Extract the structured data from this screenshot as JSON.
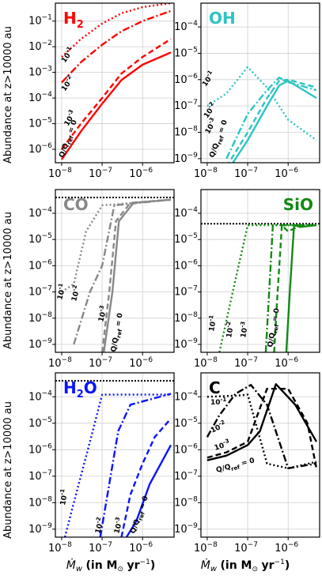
{
  "ylabel_top": "Abundance at",
  "ylabel_bottom": "z>10000 au",
  "ylabel_bottom_2": "z>10000 au",
  "ylabel_mid": "Abundance at  z>10000 au",
  "xlabel_left": "Ṁ",
  "xlabel_text": "(in M",
  "xlabel_unit": "yr",
  "ann_labels": {
    "l1": "10",
    "e1": "-1",
    "l2": "10",
    "e2": "-2",
    "l3": "10",
    "e3": "-3",
    "ref": "Q/Q",
    "refsub": "ref",
    "refval": " = 0"
  },
  "ticks": {
    "xbase": "10",
    "xexps": [
      "-8",
      "-7",
      "-6"
    ],
    "ybase": "10"
  },
  "colors": {
    "H2": "#ff0000",
    "OH": "#2ec4c4",
    "CO": "#888888",
    "SiO": "#138a13",
    "H2O": "#0a14ff",
    "C": "#000000"
  },
  "chart_data": [
    {
      "type": "line",
      "molecule": "H",
      "molecule_sub": "2",
      "color": "#ff0000",
      "xscale": "log",
      "yscale": "log",
      "xlim": [
        7e-09,
        6e-06
      ],
      "ylim": [
        3e-07,
        0.5
      ],
      "yticks": [
        -6,
        -5,
        -4,
        -3,
        -2,
        -1
      ],
      "title_pos": "top-left",
      "series": [
        {
          "name": "10^-1",
          "style": "dotted",
          "x": [
            1e-08,
            3e-08,
            1e-07,
            3e-07,
            1e-06,
            5e-06
          ],
          "y": [
            0.004,
            0.02,
            0.08,
            0.2,
            0.35,
            0.5
          ]
        },
        {
          "name": "10^-2",
          "style": "dashdot",
          "x": [
            1e-08,
            3e-08,
            1e-07,
            3e-07,
            1e-06,
            5e-06
          ],
          "y": [
            0.0004,
            0.0025,
            0.012,
            0.04,
            0.1,
            0.25
          ]
        },
        {
          "name": "10^-3",
          "style": "dashed",
          "x": [
            1e-08,
            3e-08,
            1e-07,
            3e-07,
            1e-06,
            5e-06
          ],
          "y": [
            1e-06,
            1e-05,
            0.0001,
            0.0009,
            0.004,
            0.02
          ]
        },
        {
          "name": "Q/Qref=0",
          "style": "solid",
          "x": [
            1e-08,
            3e-08,
            1e-07,
            3e-07,
            1e-06,
            5e-06
          ],
          "y": [
            4e-07,
            5e-06,
            6e-05,
            0.0005,
            0.002,
            0.006
          ]
        }
      ]
    },
    {
      "type": "line",
      "molecule": "OH",
      "molecule_sub": "",
      "color": "#2ec4c4",
      "xscale": "log",
      "yscale": "log",
      "xlim": [
        7e-09,
        6e-06
      ],
      "ylim": [
        7e-10,
        0.0008
      ],
      "yticks": [
        -9,
        -8,
        -7,
        -6,
        -5,
        -4
      ],
      "title_pos": "top-left",
      "series": [
        {
          "name": "10^-1",
          "style": "dotted",
          "x": [
            1e-08,
            3e-08,
            1e-07,
            3e-07,
            1e-06,
            5e-06
          ],
          "y": [
            1e-07,
            3e-07,
            3e-06,
            5e-07,
            3e-08,
            5e-09
          ]
        },
        {
          "name": "10^-2",
          "style": "dashdot",
          "x": [
            3e-08,
            1e-07,
            3e-07,
            6e-07,
            1e-06,
            5e-06
          ],
          "y": [
            1e-09,
            5e-08,
            4e-07,
            1.2e-06,
            8e-07,
            4e-07
          ]
        },
        {
          "name": "10^-3",
          "style": "dashed",
          "x": [
            3e-08,
            1e-07,
            3e-07,
            6e-07,
            1e-06,
            5e-06
          ],
          "y": [
            5e-10,
            1e-08,
            2e-07,
            9e-07,
            1e-06,
            5e-07
          ]
        },
        {
          "name": "Q/Qref=0",
          "style": "solid",
          "x": [
            3e-08,
            1e-07,
            3e-07,
            6e-07,
            1e-06,
            5e-06
          ],
          "y": [
            3e-10,
            5e-09,
            1e-07,
            6e-07,
            9e-07,
            2e-07
          ]
        }
      ]
    },
    {
      "type": "line",
      "molecule": "CO",
      "molecule_sub": "",
      "color": "#888888",
      "xscale": "log",
      "yscale": "log",
      "xlim": [
        7e-09,
        6e-06
      ],
      "ylim": [
        5e-10,
        0.0008
      ],
      "yticks": [
        -9,
        -8,
        -7,
        -6,
        -5,
        -4
      ],
      "title_pos": "top-left",
      "reference_line": 0.0004,
      "series": [
        {
          "name": "10^-1",
          "style": "dotted",
          "x": [
            1e-08,
            2e-08,
            4e-08,
            1e-07,
            5e-06
          ],
          "y": [
            1e-07,
            2e-07,
            2e-05,
            0.0002,
            0.00033
          ]
        },
        {
          "name": "10^-2",
          "style": "dashdot",
          "x": [
            2e-08,
            5e-08,
            1e-07,
            2e-07,
            5e-06
          ],
          "y": [
            1e-09,
            1e-07,
            1e-06,
            0.0002,
            0.00033
          ]
        },
        {
          "name": "10^-3",
          "style": "dashed",
          "x": [
            1e-07,
            1.5e-07,
            2.2e-07,
            5e-07,
            5e-06
          ],
          "y": [
            5e-10,
            1e-07,
            5e-05,
            0.00025,
            0.00033
          ]
        },
        {
          "name": "Q/Qref=0",
          "style": "solid",
          "x": [
            1.1e-07,
            1.8e-07,
            2.6e-07,
            6e-07,
            5e-06
          ],
          "y": [
            5e-10,
            1e-07,
            5e-05,
            0.00025,
            0.00033
          ]
        }
      ]
    },
    {
      "type": "line",
      "molecule": "SiO",
      "molecule_sub": "",
      "color": "#138a13",
      "xscale": "log",
      "yscale": "log",
      "xlim": [
        7e-09,
        6e-06
      ],
      "ylim": [
        5e-10,
        0.0008
      ],
      "yticks": [
        -9,
        -8,
        -7,
        -6,
        -5,
        -4
      ],
      "title_pos": "top-right",
      "reference_line": 4e-05,
      "series": [
        {
          "name": "10^-1",
          "style": "dotted",
          "x": [
            2e-08,
            5e-08,
            1e-07,
            5e-06
          ],
          "y": [
            5e-10,
            3e-07,
            3.5e-05,
            3.5e-05
          ]
        },
        {
          "name": "10^-2",
          "style": "dashdot",
          "x": [
            2.8e-07,
            3.4e-07,
            4.2e-07,
            5e-06
          ],
          "y": [
            5e-10,
            1e-07,
            3.5e-05,
            3.5e-05
          ]
        },
        {
          "name": "10^-3",
          "style": "dashed",
          "x": [
            4.5e-07,
            5.5e-07,
            7e-07,
            1e-06,
            2e-06,
            5e-06
          ],
          "y": [
            5e-10,
            1e-07,
            3.5e-05,
            2e-05,
            3.5e-05,
            3.5e-05
          ]
        },
        {
          "name": "Q/Qref=0",
          "style": "solid",
          "x": [
            9e-07,
            1.1e-06,
            1.4e-06,
            2e-06,
            5e-06
          ],
          "y": [
            5e-10,
            1e-07,
            3.5e-05,
            3e-05,
            3.5e-05
          ]
        }
      ]
    },
    {
      "type": "line",
      "molecule": "H",
      "molecule_sub": "2",
      "molecule_tail": "O",
      "color": "#0a14ff",
      "xscale": "log",
      "yscale": "log",
      "xlim": [
        7e-09,
        6e-06
      ],
      "ylim": [
        5e-10,
        0.0008
      ],
      "yticks": [
        -9,
        -8,
        -7,
        -6,
        -5,
        -4
      ],
      "title_pos": "top-left",
      "reference_line": 0.0004,
      "series": [
        {
          "name": "10^-1",
          "style": "dotted",
          "x": [
            1.2e-08,
            2e-08,
            5e-08,
            1e-07,
            5e-06
          ],
          "y": [
            5e-10,
            1e-08,
            2e-06,
            0.00012,
            0.00012
          ]
        },
        {
          "name": "10^-2",
          "style": "dashdot",
          "x": [
            9e-08,
            1.5e-07,
            2.5e-07,
            5e-07,
            5e-06
          ],
          "y": [
            5e-10,
            5e-08,
            5e-06,
            5e-05,
            0.00013
          ]
        },
        {
          "name": "10^-3",
          "style": "dashed",
          "x": [
            3e-07,
            5e-07,
            1e-06,
            2e-06,
            5e-06
          ],
          "y": [
            5e-10,
            2e-08,
            3e-07,
            3e-06,
            1.5e-05
          ]
        },
        {
          "name": "Q/Qref=0",
          "style": "solid",
          "x": [
            4e-07,
            7e-07,
            1.5e-06,
            5e-06
          ],
          "y": [
            5e-10,
            2e-09,
            5e-08,
            1.5e-06
          ]
        }
      ]
    },
    {
      "type": "line",
      "molecule": "C",
      "molecule_sub": "",
      "color": "#000000",
      "xscale": "log",
      "yscale": "log",
      "xlim": [
        7e-09,
        6e-06
      ],
      "ylim": [
        5e-10,
        0.0008
      ],
      "yticks": [
        -9,
        -8,
        -7,
        -6,
        -5,
        -4
      ],
      "title_pos": "top-left",
      "series": [
        {
          "name": "10^-1",
          "style": "dotted",
          "x": [
            1e-08,
            5e-08,
            1e-07,
            3e-07,
            1e-06,
            5e-06
          ],
          "y": [
            0.0001,
            0.00011,
            0.00012,
            3e-07,
            2e-07,
            3.5e-07
          ]
        },
        {
          "name": "10^-2",
          "style": "dashdot",
          "x": [
            1e-08,
            2e-08,
            5e-08,
            1.2e-07,
            3e-07,
            1e-06,
            5e-06
          ],
          "y": [
            3e-06,
            2e-05,
            0.00013,
            0.00028,
            5e-05,
            2e-07,
            3e-07
          ]
        },
        {
          "name": "10^-3",
          "style": "dashed",
          "x": [
            1e-08,
            3e-08,
            1e-07,
            3e-07,
            1e-06,
            3e-06,
            5e-06
          ],
          "y": [
            5e-07,
            8e-07,
            2e-06,
            0.0002,
            0.0002,
            1e-05,
            2e-07
          ]
        },
        {
          "name": "Q/Qref=0",
          "style": "solid",
          "x": [
            1e-08,
            3e-08,
            1e-07,
            2e-07,
            5e-07,
            1.5e-06,
            5e-06
          ],
          "y": [
            4e-07,
            6e-07,
            1.5e-06,
            5e-06,
            0.0003,
            5e-05,
            2e-06
          ]
        }
      ]
    }
  ]
}
